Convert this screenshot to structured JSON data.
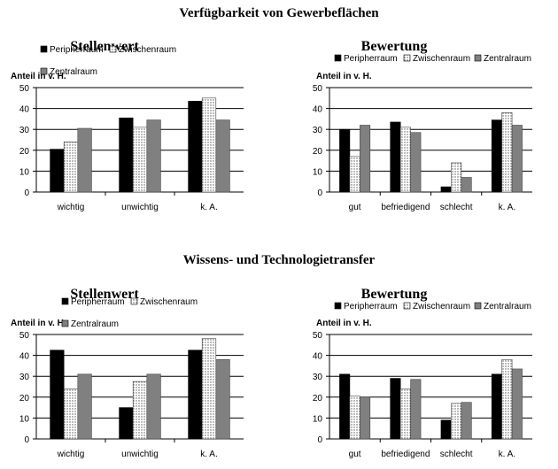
{
  "sections": [
    {
      "title": "Verfügbarkeit von Gewerbeflächen"
    },
    {
      "title": "Wissens- und Technologietransfer"
    }
  ],
  "colors": {
    "peripherraum": "#000000",
    "zwischenraum": "dotted-white",
    "zentralraum": "#808080"
  },
  "chart_data": [
    {
      "type": "bar",
      "title": "Stellenwert",
      "ylabel": "Anteil in v. H.",
      "ylim": [
        0,
        50
      ],
      "yticks": [
        0,
        10,
        20,
        30,
        40,
        50
      ],
      "grid": true,
      "legend_position": "top-left",
      "categories": [
        "wichtig",
        "unwichtig",
        "k. A."
      ],
      "series": [
        {
          "name": "Peripherraum",
          "values": [
            20.5,
            35.5,
            43.5
          ]
        },
        {
          "name": "Zwischenraum",
          "values": [
            24,
            31,
            45
          ]
        },
        {
          "name": "Zentralraum",
          "values": [
            30.5,
            34.5,
            34.5
          ]
        }
      ]
    },
    {
      "type": "bar",
      "title": "Bewertung",
      "ylabel": "Anteil in v. H.",
      "ylim": [
        0,
        50
      ],
      "yticks": [
        0,
        10,
        20,
        30,
        40,
        50
      ],
      "grid": true,
      "legend_position": "top",
      "categories": [
        "gut",
        "befriedigend",
        "schlecht",
        "k. A."
      ],
      "series": [
        {
          "name": "Peripherraum",
          "values": [
            30,
            33.5,
            2.5,
            34.5
          ]
        },
        {
          "name": "Zwischenraum",
          "values": [
            17,
            31,
            14,
            38
          ]
        },
        {
          "name": "Zentralraum",
          "values": [
            32,
            28.5,
            7,
            32
          ]
        }
      ]
    },
    {
      "type": "bar",
      "title": "Stellenwert",
      "ylabel": "Anteil in v. H.",
      "ylim": [
        0,
        50
      ],
      "yticks": [
        0,
        10,
        20,
        30,
        40,
        50
      ],
      "grid": true,
      "legend_position": "top",
      "categories": [
        "wichtig",
        "unwichtig",
        "k. A."
      ],
      "series": [
        {
          "name": "Peripherraum",
          "values": [
            42.5,
            15,
            42.5
          ]
        },
        {
          "name": "Zwischenraum",
          "values": [
            24,
            27.5,
            48
          ]
        },
        {
          "name": "Zentralraum",
          "values": [
            31,
            31,
            38
          ]
        }
      ]
    },
    {
      "type": "bar",
      "title": "Bewertung",
      "ylabel": "Anteil in v. H.",
      "ylim": [
        0,
        50
      ],
      "yticks": [
        0,
        10,
        20,
        30,
        40,
        50
      ],
      "grid": true,
      "legend_position": "top",
      "categories": [
        "gut",
        "befriedigend",
        "schlecht",
        "k. A."
      ],
      "series": [
        {
          "name": "Peripherraum",
          "values": [
            31,
            29,
            9,
            31
          ]
        },
        {
          "name": "Zwischenraum",
          "values": [
            20.5,
            24,
            17,
            38
          ]
        },
        {
          "name": "Zentralraum",
          "values": [
            20,
            28.5,
            17.5,
            33.5
          ]
        }
      ]
    }
  ]
}
